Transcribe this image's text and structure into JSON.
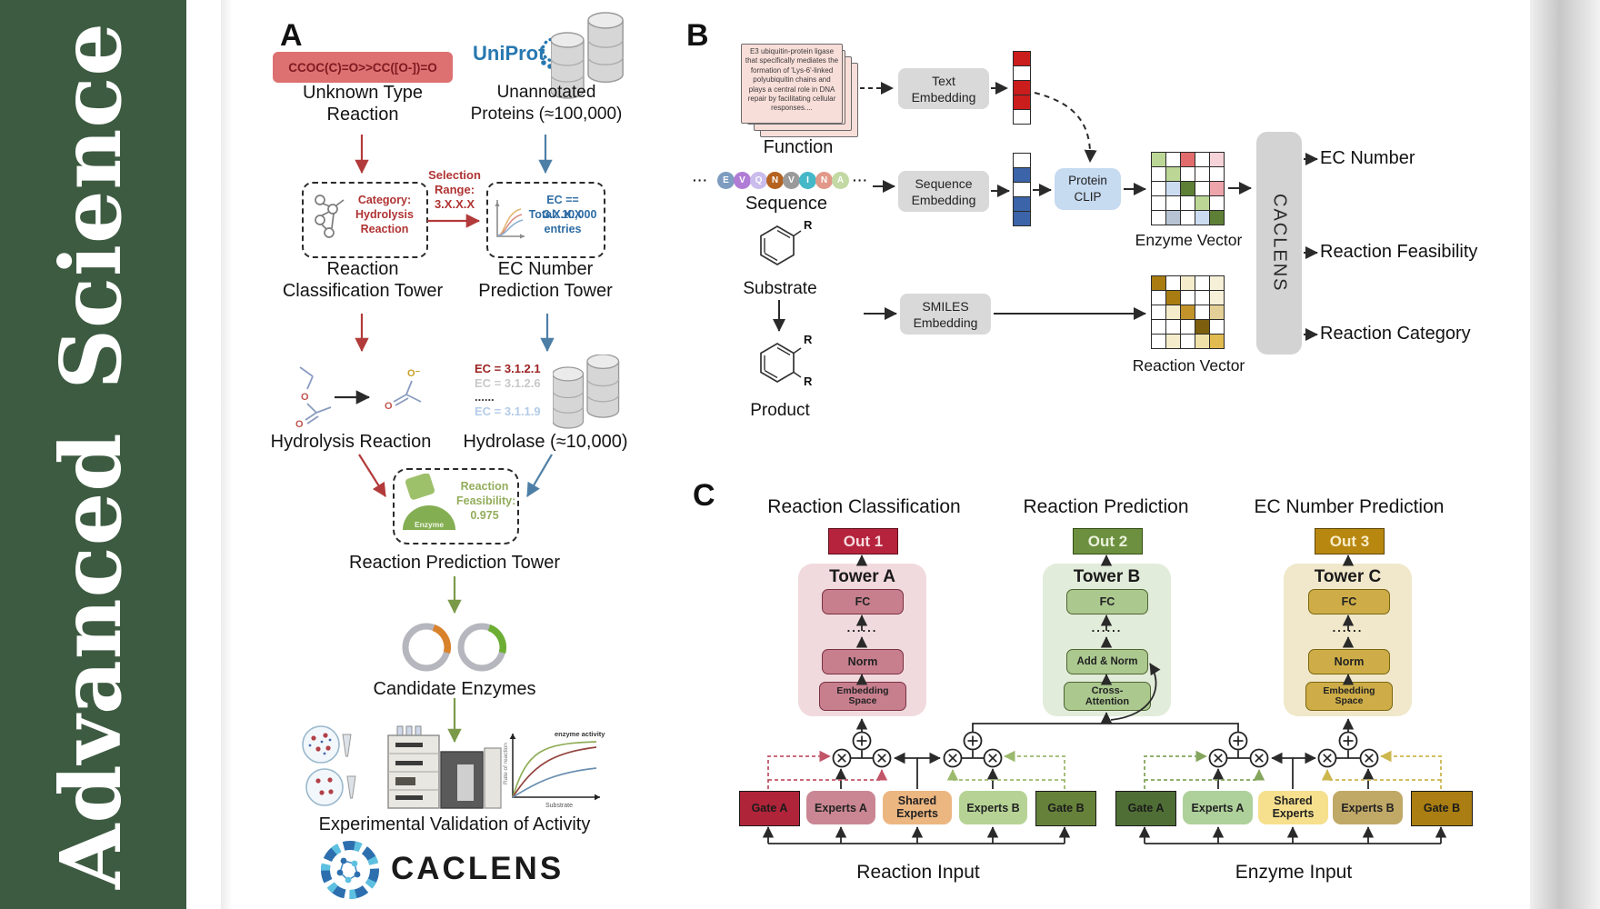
{
  "sidebar": {
    "brand": "Advanced Science"
  },
  "panelA": {
    "label": "A",
    "smiles": "CCOC(C)=O>>CC([O-])=O",
    "unknown_line1": "Unknown Type",
    "unknown_line2": "Reaction",
    "uniprot": "UniProt",
    "unannotated_line1": "Unannotated",
    "unannotated_line2": "Proteins (≈100,000)",
    "selection_line1": "Selection",
    "selection_line2": "Range:",
    "selection_line3": "3.X.X.X",
    "category_line1": "Category:",
    "category_line2": "Hydrolysis",
    "category_line3": "Reaction",
    "ecbox_line1": "EC == 3.X.X.X",
    "ecbox_line2": "Total: 10,000",
    "ecbox_line3": "entries",
    "rc_tower_line1": "Reaction",
    "rc_tower_line2": "Classification Tower",
    "ec_tower_line1": "EC Number",
    "ec_tower_line2": "Prediction Tower",
    "hydrolysis_label": "Hydrolysis Reaction",
    "hydrolase_label": "Hydrolase (≈10,000)",
    "ec_list": [
      {
        "text": "EC = 3.1.2.1",
        "color": "#9c2222",
        "weight": "bold"
      },
      {
        "text": "EC = 3.1.2.6",
        "color": "#c8c8c8",
        "weight": "bold"
      },
      {
        "text": "......",
        "color": "#3a3a3a",
        "weight": "bold"
      },
      {
        "text": "EC = 3.1.1.9",
        "color": "#b3cbe8",
        "weight": "bold"
      }
    ],
    "atom_o": "O",
    "atom_o_minus": "O⁻",
    "enzyme_label": "Enzyme",
    "feasibility_line1": "Reaction",
    "feasibility_line2": "Feasibility:",
    "feasibility_line3": "0.975",
    "rp_tower": "Reaction Prediction Tower",
    "candidate": "Candidate Enzymes",
    "plot": {
      "ylabel": "Rate of reaction",
      "xlabel": "Substrate",
      "annotation": "enzyme activity"
    },
    "validation": "Experimental Validation of Activity",
    "brand": "CACLENS"
  },
  "panelB": {
    "label": "B",
    "card_lines": [
      "E3 ubiquitin-protein ligase",
      "that specifically mediates the",
      "formation of 'Lys-6'-linked",
      "polyubiquitin chains and",
      "plays a central role in DNA",
      "repair by facilitating cellular",
      "responses...."
    ],
    "function_label": "Function",
    "sequence_label": "Sequence",
    "ellipsis": "···",
    "residues": [
      {
        "letter": "E",
        "color": "#7d9cc0"
      },
      {
        "letter": "V",
        "color": "#b07cd6"
      },
      {
        "letter": "Q",
        "color": "#cabcec"
      },
      {
        "letter": "N",
        "color": "#b5621f"
      },
      {
        "letter": "V",
        "color": "#9a9a9a"
      },
      {
        "letter": "I",
        "color": "#45b8c8"
      },
      {
        "letter": "N",
        "color": "#e29889"
      },
      {
        "letter": "A",
        "color": "#c3d9a4"
      }
    ],
    "text_embedding_line1": "Text",
    "text_embedding_line2": "Embedding",
    "seq_embedding_line1": "Sequence",
    "seq_embedding_line2": "Embedding",
    "smiles_embedding_line1": "SMILES",
    "smiles_embedding_line2": "Embedding",
    "clip_line1": "Protein",
    "clip_line2": "CLIP",
    "text_vector": [
      "#cc1d1d",
      "#ffffff",
      "#cc1d1d",
      "#cc1d1d",
      "#ffffff"
    ],
    "seq_vector": [
      "#ffffff",
      "#3c64a8",
      "#ffffff",
      "#3c64a8",
      "#3c64a8"
    ],
    "enzyme_grid": [
      [
        "#bcd795",
        "#ffffff",
        "#e26b6b",
        "#ffffff",
        "#f6d3d8"
      ],
      [
        "#ffffff",
        "#bcd795",
        "#ffffff",
        "#ffffff",
        "#ffffff"
      ],
      [
        "#ffffff",
        "#ccdcf0",
        "#5d7f36",
        "#ffffff",
        "#eda4ab"
      ],
      [
        "#ffffff",
        "#ffffff",
        "#ffffff",
        "#bcd795",
        "#ffffff"
      ],
      [
        "#ffffff",
        "#b7c3d3",
        "#ffffff",
        "#ccdcf0",
        "#5d7f36"
      ]
    ],
    "reaction_grid": [
      [
        "#a87c10",
        "#ffffff",
        "#f5eccb",
        "#ffffff",
        "#f7f0d8"
      ],
      [
        "#ffffff",
        "#a87c10",
        "#ffffff",
        "#ffffff",
        "#f7f0d8"
      ],
      [
        "#ffffff",
        "#f5eccb",
        "#c2932b",
        "#ffffff",
        "#e4d096"
      ],
      [
        "#ffffff",
        "#ffffff",
        "#ffffff",
        "#7c5e0e",
        "#ffffff"
      ],
      [
        "#ffffff",
        "#f5eccb",
        "#ffffff",
        "#f0e1a9",
        "#e2bb50"
      ]
    ],
    "enzyme_vector_label": "Enzyme Vector",
    "reaction_vector_label": "Reaction Vector",
    "caclens_bar": "CACLENS",
    "substrate_label": "Substrate",
    "product_label": "Product",
    "r_group": "R",
    "outputs": [
      "EC Number",
      "Reaction Feasibility",
      "Reaction Category"
    ]
  },
  "panelC": {
    "label": "C",
    "titles": [
      "Reaction Classification",
      "Reaction Prediction",
      "EC Number Prediction"
    ],
    "outs": [
      "Out 1",
      "Out 2",
      "Out 3"
    ],
    "dots": "......",
    "towers": [
      {
        "name": "Tower A",
        "fc": "FC",
        "mid": "Norm",
        "bottom_line1": "Embedding",
        "bottom_line2": "Space"
      },
      {
        "name": "Tower B",
        "fc": "FC",
        "mid": "Add & Norm",
        "bottom_line1": "Cross-",
        "bottom_line2": "Attention"
      },
      {
        "name": "Tower C",
        "fc": "FC",
        "mid": "Norm",
        "bottom_line1": "Embedding",
        "bottom_line2": "Space"
      }
    ],
    "groups": [
      {
        "gate_a": "Gate A",
        "experts_a": "Experts A",
        "shared_line1": "Shared",
        "shared_line2": "Experts",
        "experts_b": "Experts B",
        "gate_b": "Gate B",
        "input": "Reaction Input"
      },
      {
        "gate_a": "Gate A",
        "experts_a": "Experts A",
        "shared_line1": "Shared",
        "shared_line2": "Experts",
        "experts_b": "Experts B",
        "gate_b": "Gate B",
        "input": "Enzyme Input"
      }
    ]
  }
}
